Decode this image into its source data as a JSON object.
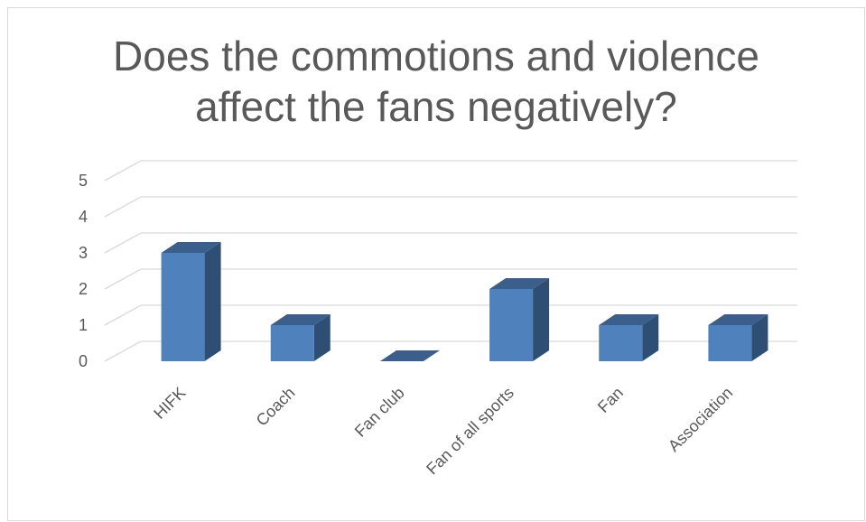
{
  "chart_data": {
    "type": "bar",
    "title": "Does the commotions and violence affect the fans negatively?",
    "categories": [
      "HIFK",
      "Coach",
      "Fan club",
      "Fan of all sports",
      "Fan",
      "Association"
    ],
    "series": [
      {
        "values": [
          3,
          1,
          0,
          2,
          1,
          1
        ]
      }
    ],
    "ylim": [
      0,
      5
    ],
    "yticks": [
      0,
      1,
      2,
      3,
      4,
      5
    ],
    "grid": true,
    "colors": {
      "bar_front": "#4f81bd",
      "bar_top": "#3a5f8c",
      "bar_side": "#2f4e74",
      "grid": "#d9d9d9",
      "text": "#595959"
    }
  }
}
